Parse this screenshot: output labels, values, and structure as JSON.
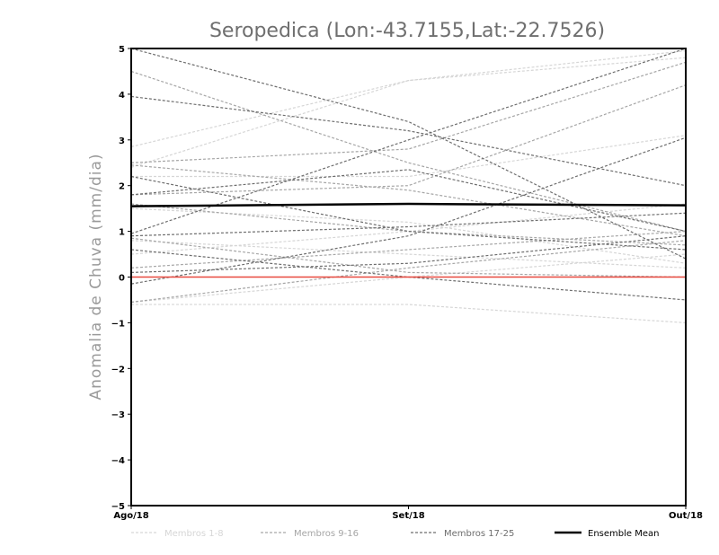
{
  "chart_data": {
    "type": "line",
    "title": "Seropedica (Lon:-43.7155,Lat:-22.7526)",
    "ylabel": "Anomalia de Chuva (mm/dia)",
    "xlabel": "",
    "categories": [
      "Ago/18",
      "Set/18",
      "Out/18"
    ],
    "ylim": [
      -5,
      5
    ],
    "yticks": [
      -5,
      -4,
      -3,
      -2,
      -1,
      0,
      1,
      2,
      3,
      4,
      5
    ],
    "grid": false,
    "legend_position": "bottom",
    "legend": [
      {
        "label": "Membros 1-8",
        "color": "#d6d6d6",
        "style": "dashed"
      },
      {
        "label": "Membros 9-16",
        "color": "#a6a6a6",
        "style": "dashed"
      },
      {
        "label": "Membros 17-25",
        "color": "#6e6e6e",
        "style": "dashed"
      },
      {
        "label": "Ensemble Mean",
        "color": "#000000",
        "style": "solid"
      }
    ],
    "zero_line_color": "#e8493f",
    "groups": [
      {
        "name": "Membros 1-8",
        "color": "#d6d6d6",
        "series": [
          [
            2.85,
            4.3,
            4.95
          ],
          [
            -0.6,
            -0.6,
            -1.0
          ],
          [
            0.5,
            1.0,
            1.6
          ],
          [
            2.2,
            2.2,
            3.1
          ],
          [
            1.5,
            1.2,
            0.3
          ],
          [
            -0.55,
            0.0,
            0.5
          ],
          [
            0.8,
            0.5,
            0.2
          ],
          [
            2.4,
            4.3,
            4.8
          ]
        ]
      },
      {
        "name": "Membros 9-16",
        "color": "#a6a6a6",
        "series": [
          [
            4.5,
            2.5,
            1.0
          ],
          [
            1.8,
            2.0,
            4.2
          ],
          [
            0.85,
            0.1,
            0.0
          ],
          [
            1.6,
            1.0,
            0.7
          ],
          [
            2.5,
            2.8,
            4.7
          ],
          [
            -0.55,
            0.2,
            0.8
          ],
          [
            2.45,
            1.9,
            0.9
          ],
          [
            0.2,
            0.6,
            1.0
          ]
        ]
      },
      {
        "name": "Membros 17-25",
        "color": "#6e6e6e",
        "series": [
          [
            5.0,
            3.4,
            0.4
          ],
          [
            3.95,
            3.2,
            2.0
          ],
          [
            0.95,
            3.0,
            5.0
          ],
          [
            1.8,
            2.35,
            1.0
          ],
          [
            2.2,
            1.0,
            0.6
          ],
          [
            0.1,
            0.3,
            0.9
          ],
          [
            -0.15,
            0.9,
            3.05
          ],
          [
            0.6,
            0.0,
            -0.5
          ],
          [
            0.9,
            1.1,
            1.4
          ]
        ]
      }
    ],
    "ensemble_mean": {
      "name": "Ensemble Mean",
      "color": "#000000",
      "values": [
        1.55,
        1.6,
        1.57
      ]
    }
  }
}
